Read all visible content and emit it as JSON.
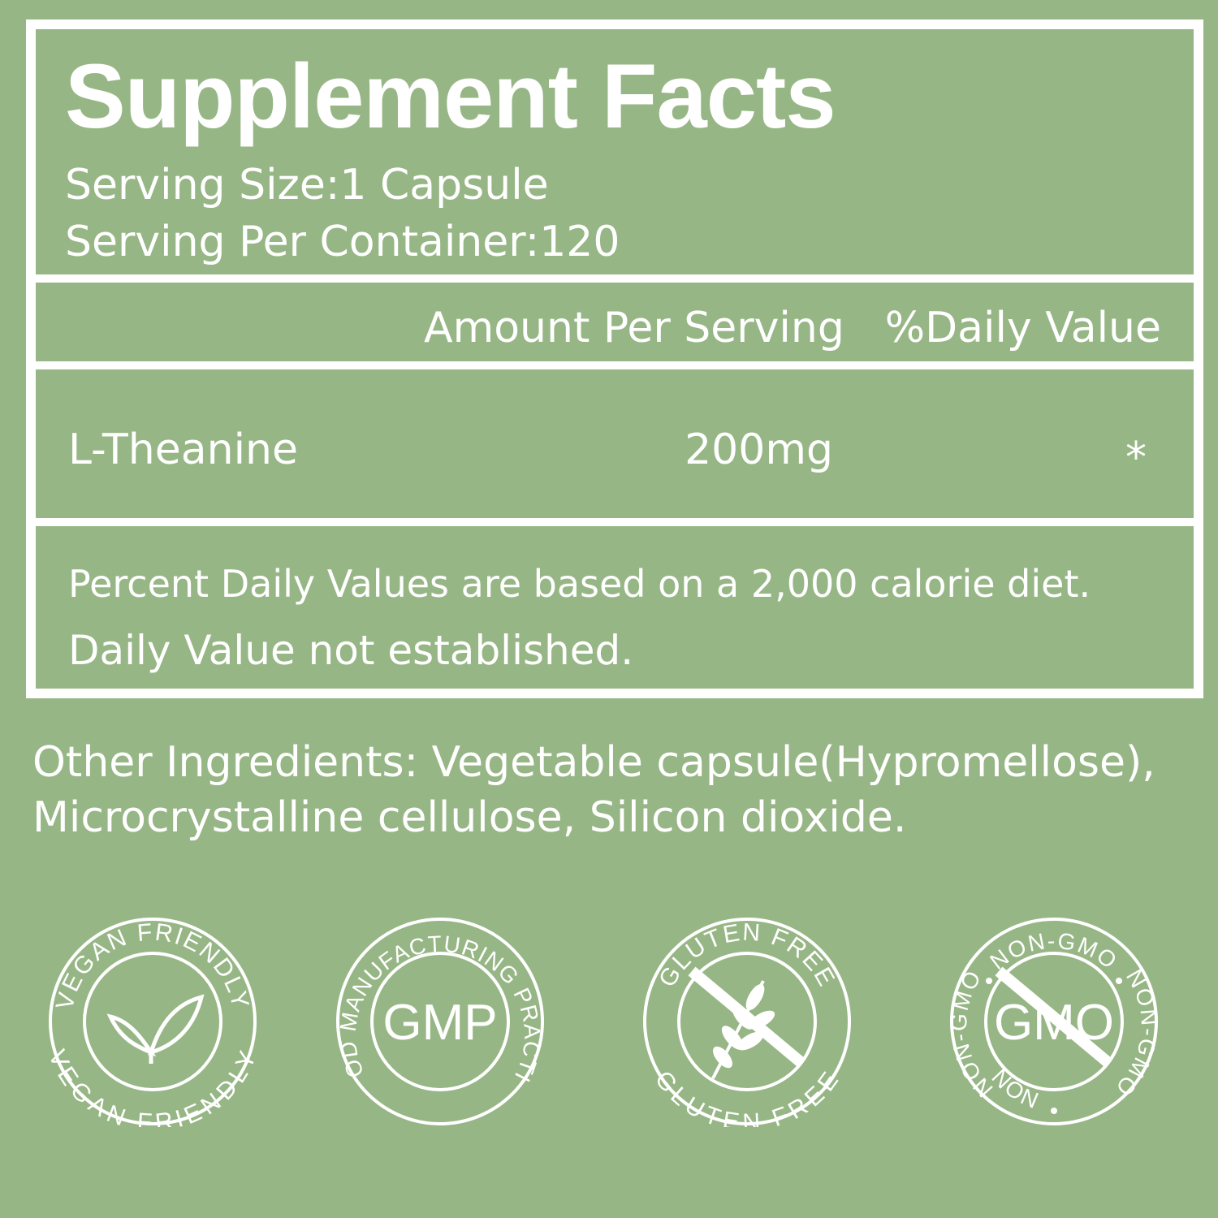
{
  "panel": {
    "title": "Supplement Facts",
    "serving_size": "Serving Size:1 Capsule",
    "servings_per_container": "Serving Per Container:120",
    "header": {
      "amount": "Amount Per Serving",
      "daily_value": "%Daily Value"
    },
    "rows": [
      {
        "name": "L-Theanine",
        "amount": "200mg",
        "dv": "*"
      }
    ],
    "footnotes": [
      "Percent Daily Values are based on a 2,000 calorie diet.",
      "Daily Value not established."
    ]
  },
  "other_ingredients": "Other Ingredients: Vegetable capsule(Hypromellose), Microcrystalline cellulose, Silicon dioxide.",
  "badges": [
    {
      "top": "VEGAN FRIENDLY",
      "bottom": "VEGAN FRIENDLY",
      "icon": "leaf-icon"
    },
    {
      "top": "GOOD MANUFACTURING PRACTICE",
      "center": "GMP",
      "icon": "gmp-icon"
    },
    {
      "top": "GLUTEN FREE",
      "bottom": "GLUTEN FREE",
      "icon": "wheat-crossed-icon"
    },
    {
      "top": "NON-GMO",
      "left": "NON-GMO",
      "right": "NON-GMO",
      "bottom": "NON",
      "center": "GMO",
      "icon": "gmo-crossed-icon"
    }
  ],
  "colors": {
    "background": "#97b685",
    "foreground": "#ffffff"
  }
}
